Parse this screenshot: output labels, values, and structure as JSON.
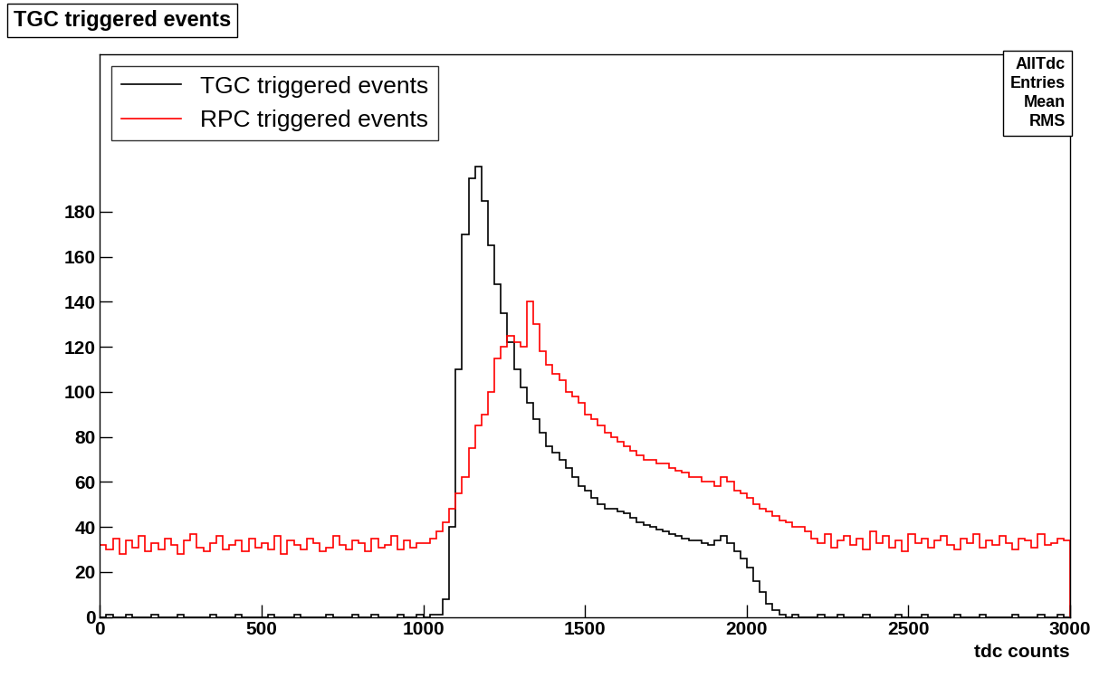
{
  "chart_data": {
    "type": "histogram",
    "title": "TGC triggered events",
    "x_label": "tdc counts",
    "bins": [
      0,
      20,
      40,
      60,
      80,
      100,
      120,
      140,
      160,
      180,
      200,
      220,
      240,
      260,
      280,
      300,
      320,
      340,
      360,
      380,
      400,
      420,
      440,
      460,
      480,
      500,
      520,
      540,
      560,
      580,
      600,
      620,
      640,
      660,
      680,
      700,
      720,
      740,
      760,
      780,
      800,
      820,
      840,
      860,
      880,
      900,
      920,
      940,
      960,
      980,
      1000,
      1020,
      1040,
      1060,
      1080,
      1100,
      1120,
      1140,
      1160,
      1180,
      1200,
      1220,
      1240,
      1260,
      1280,
      1300,
      1320,
      1340,
      1360,
      1380,
      1400,
      1420,
      1440,
      1460,
      1480,
      1500,
      1520,
      1540,
      1560,
      1580,
      1600,
      1620,
      1640,
      1660,
      1680,
      1700,
      1720,
      1740,
      1760,
      1780,
      1800,
      1820,
      1840,
      1860,
      1880,
      1900,
      1920,
      1940,
      1960,
      1980,
      2000,
      2020,
      2040,
      2060,
      2080,
      2100,
      2120,
      2140,
      2160,
      2180,
      2200,
      2220,
      2240,
      2260,
      2280,
      2300,
      2320,
      2340,
      2360,
      2380,
      2400,
      2420,
      2440,
      2460,
      2480,
      2500,
      2520,
      2540,
      2560,
      2580,
      2600,
      2620,
      2640,
      2660,
      2680,
      2700,
      2720,
      2740,
      2760,
      2780,
      2800,
      2820,
      2840,
      2860,
      2880,
      2900,
      2920,
      2940,
      2960,
      2980,
      3000
    ],
    "series": [
      {
        "name": "TGC triggered events",
        "color": "#000000",
        "values": [
          0,
          1,
          0,
          0,
          1,
          0,
          0,
          0,
          1,
          0,
          0,
          0,
          1,
          0,
          0,
          0,
          0,
          1,
          0,
          0,
          0,
          1,
          0,
          0,
          0,
          0,
          1,
          0,
          0,
          0,
          1,
          0,
          0,
          0,
          0,
          1,
          0,
          0,
          0,
          1,
          0,
          0,
          1,
          0,
          0,
          0,
          1,
          0,
          0,
          1,
          0,
          1,
          1,
          8,
          40,
          110,
          170,
          195,
          200,
          185,
          165,
          148,
          135,
          122,
          110,
          102,
          95,
          88,
          82,
          76,
          73,
          70,
          66,
          62,
          58,
          56,
          53,
          50,
          48,
          48,
          47,
          46,
          44,
          42,
          41,
          40,
          39,
          38,
          37,
          36,
          35,
          34,
          34,
          33,
          32,
          34,
          36,
          33,
          29,
          26,
          22,
          16,
          11,
          6,
          3,
          1,
          0,
          1,
          0,
          0,
          0,
          1,
          0,
          0,
          1,
          0,
          0,
          0,
          1,
          0,
          0,
          0,
          0,
          1,
          0,
          0,
          0,
          1,
          0,
          0,
          0,
          0,
          1,
          0,
          0,
          0,
          1,
          0,
          0,
          0,
          0,
          1,
          0,
          0,
          0,
          1,
          0,
          0,
          1,
          0
        ]
      },
      {
        "name": "RPC triggered events",
        "color": "#ff0000",
        "values": [
          32,
          30,
          35,
          28,
          34,
          31,
          36,
          29,
          33,
          30,
          35,
          32,
          28,
          34,
          37,
          31,
          29,
          33,
          36,
          30,
          32,
          34,
          29,
          35,
          31,
          33,
          30,
          36,
          28,
          34,
          32,
          30,
          35,
          33,
          29,
          31,
          36,
          32,
          30,
          34,
          33,
          29,
          35,
          31,
          32,
          36,
          30,
          34,
          31,
          33,
          33,
          35,
          38,
          42,
          48,
          55,
          62,
          75,
          85,
          90,
          100,
          115,
          120,
          125,
          122,
          120,
          140,
          130,
          118,
          112,
          108,
          105,
          100,
          98,
          95,
          90,
          88,
          85,
          82,
          80,
          78,
          76,
          74,
          72,
          70,
          70,
          68,
          68,
          66,
          65,
          64,
          62,
          62,
          60,
          60,
          58,
          62,
          60,
          56,
          55,
          53,
          50,
          48,
          47,
          45,
          43,
          42,
          40,
          40,
          38,
          35,
          33,
          37,
          31,
          34,
          36,
          32,
          35,
          30,
          38,
          33,
          36,
          31,
          34,
          29,
          37,
          33,
          35,
          31,
          34,
          36,
          32,
          30,
          35,
          33,
          37,
          31,
          34,
          32,
          36,
          33,
          30,
          35,
          34,
          31,
          37,
          32,
          33,
          35,
          34
        ]
      }
    ],
    "xlim": [
      0,
      3000
    ],
    "xticks": [
      0,
      500,
      1000,
      1500,
      2000,
      2500,
      3000
    ],
    "ylim": [
      0,
      250
    ],
    "yticks": [
      0,
      20,
      40,
      60,
      80,
      100,
      120,
      140,
      160,
      180
    ],
    "legend": "upper left",
    "stats_box": {
      "title": "AllTdc",
      "rows": [
        "Entries",
        "Mean",
        "RMS"
      ]
    }
  }
}
